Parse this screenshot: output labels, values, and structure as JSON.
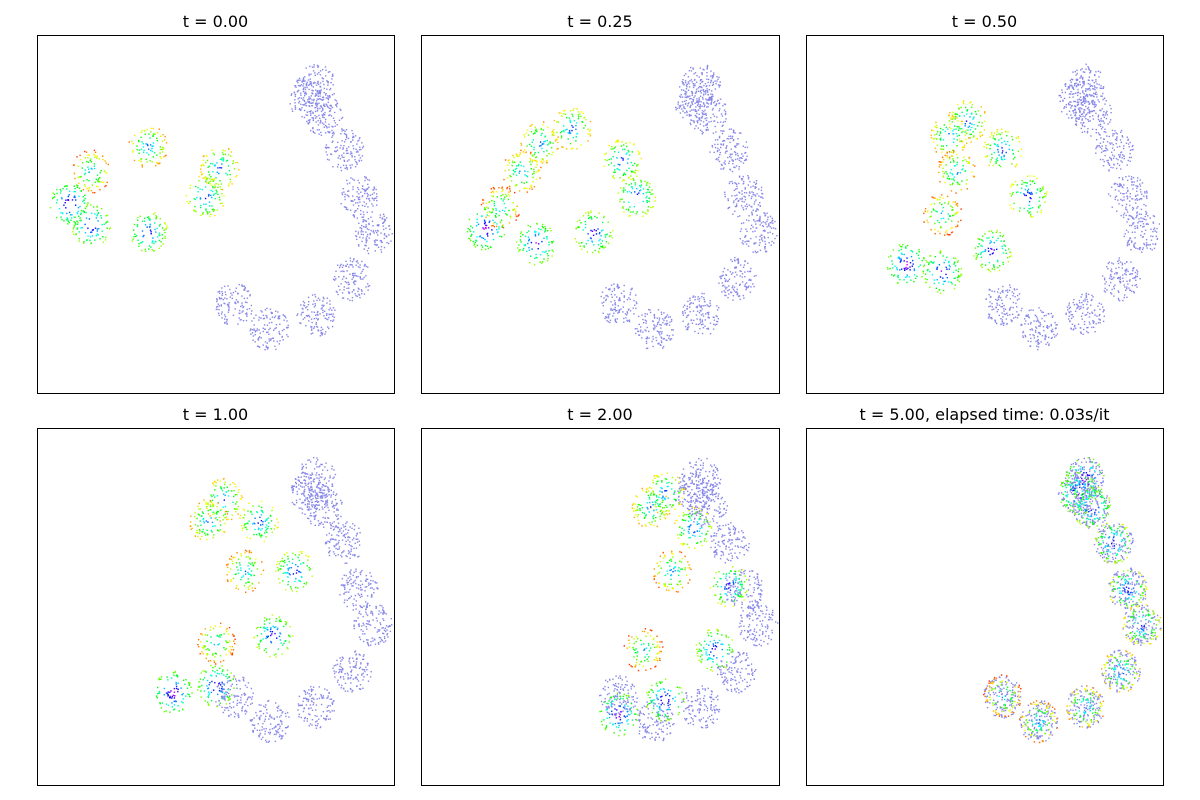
{
  "figure": {
    "panel_titles": [
      "t = 0.00",
      "t = 0.25",
      "t = 0.50",
      "t = 1.00",
      "t = 2.00",
      "t = 5.00, elapsed time: 0.03s/it"
    ]
  },
  "chart_data": [
    {
      "type": "scatter",
      "title": "t = 0.00",
      "xlabel": "",
      "ylabel": "",
      "xlim": [
        0,
        1
      ],
      "ylim": [
        0,
        1
      ],
      "grid": false,
      "ticks": "hidden",
      "target_color": "#8888e8",
      "source_colormap": "gist_rainbow",
      "series": [
        {
          "role": "target",
          "shape": "paisley",
          "points": [
            [
              0.78,
              0.86
            ],
            [
              0.76,
              0.82
            ],
            [
              0.8,
              0.78
            ],
            [
              0.86,
              0.68
            ],
            [
              0.9,
              0.55
            ],
            [
              0.94,
              0.45
            ],
            [
              0.88,
              0.32
            ],
            [
              0.78,
              0.22
            ],
            [
              0.65,
              0.18
            ],
            [
              0.55,
              0.25
            ]
          ]
        },
        {
          "role": "source",
          "shape": "ellipse",
          "center": [
            0.31,
            0.57
          ],
          "points": [
            [
              0.09,
              0.53
            ],
            [
              0.15,
              0.47
            ],
            [
              0.31,
              0.45
            ],
            [
              0.47,
              0.55
            ],
            [
              0.51,
              0.63
            ],
            [
              0.31,
              0.69
            ],
            [
              0.15,
              0.62
            ]
          ]
        }
      ]
    },
    {
      "type": "scatter",
      "title": "t = 0.25",
      "xlabel": "",
      "ylabel": "",
      "xlim": [
        0,
        1
      ],
      "ylim": [
        0,
        1
      ],
      "grid": false,
      "ticks": "hidden",
      "target_color": "#8888e8",
      "source_colormap": "gist_rainbow",
      "series": [
        {
          "role": "target",
          "shape": "paisley",
          "points": [
            [
              0.78,
              0.86
            ],
            [
              0.76,
              0.82
            ],
            [
              0.8,
              0.78
            ],
            [
              0.86,
              0.68
            ],
            [
              0.9,
              0.55
            ],
            [
              0.94,
              0.45
            ],
            [
              0.88,
              0.32
            ],
            [
              0.78,
              0.22
            ],
            [
              0.65,
              0.18
            ],
            [
              0.55,
              0.25
            ]
          ]
        },
        {
          "role": "source",
          "shape": "crescent",
          "points": [
            [
              0.18,
              0.46
            ],
            [
              0.32,
              0.42
            ],
            [
              0.48,
              0.45
            ],
            [
              0.6,
              0.55
            ],
            [
              0.56,
              0.65
            ],
            [
              0.42,
              0.74
            ],
            [
              0.33,
              0.7
            ],
            [
              0.28,
              0.62
            ],
            [
              0.22,
              0.52
            ]
          ]
        }
      ]
    },
    {
      "type": "scatter",
      "title": "t = 0.50",
      "xlabel": "",
      "ylabel": "",
      "xlim": [
        0,
        1
      ],
      "ylim": [
        0,
        1
      ],
      "grid": false,
      "ticks": "hidden",
      "target_color": "#8888e8",
      "source_colormap": "gist_rainbow",
      "series": [
        {
          "role": "target",
          "shape": "paisley",
          "points": [
            [
              0.78,
              0.86
            ],
            [
              0.76,
              0.82
            ],
            [
              0.8,
              0.78
            ],
            [
              0.86,
              0.68
            ],
            [
              0.9,
              0.55
            ],
            [
              0.94,
              0.45
            ],
            [
              0.88,
              0.32
            ],
            [
              0.78,
              0.22
            ],
            [
              0.65,
              0.18
            ],
            [
              0.55,
              0.25
            ]
          ]
        },
        {
          "role": "source",
          "shape": "crescent",
          "points": [
            [
              0.28,
              0.36
            ],
            [
              0.38,
              0.34
            ],
            [
              0.52,
              0.4
            ],
            [
              0.62,
              0.55
            ],
            [
              0.55,
              0.68
            ],
            [
              0.45,
              0.76
            ],
            [
              0.4,
              0.72
            ],
            [
              0.42,
              0.62
            ],
            [
              0.38,
              0.5
            ]
          ]
        }
      ]
    },
    {
      "type": "scatter",
      "title": "t = 1.00",
      "xlabel": "",
      "ylabel": "",
      "xlim": [
        0,
        1
      ],
      "ylim": [
        0,
        1
      ],
      "grid": false,
      "ticks": "hidden",
      "target_color": "#8888e8",
      "source_colormap": "gist_rainbow",
      "series": [
        {
          "role": "target",
          "shape": "paisley",
          "points": [
            [
              0.78,
              0.86
            ],
            [
              0.76,
              0.82
            ],
            [
              0.8,
              0.78
            ],
            [
              0.86,
              0.68
            ],
            [
              0.9,
              0.55
            ],
            [
              0.94,
              0.45
            ],
            [
              0.88,
              0.32
            ],
            [
              0.78,
              0.22
            ],
            [
              0.65,
              0.18
            ],
            [
              0.55,
              0.25
            ]
          ]
        },
        {
          "role": "source",
          "shape": "crescent",
          "points": [
            [
              0.38,
              0.26
            ],
            [
              0.5,
              0.28
            ],
            [
              0.66,
              0.42
            ],
            [
              0.72,
              0.6
            ],
            [
              0.62,
              0.74
            ],
            [
              0.52,
              0.8
            ],
            [
              0.48,
              0.74
            ],
            [
              0.58,
              0.6
            ],
            [
              0.5,
              0.4
            ]
          ]
        }
      ]
    },
    {
      "type": "scatter",
      "title": "t = 2.00",
      "xlabel": "",
      "ylabel": "",
      "xlim": [
        0,
        1
      ],
      "ylim": [
        0,
        1
      ],
      "grid": false,
      "ticks": "hidden",
      "target_color": "#8888e8",
      "source_colormap": "gist_rainbow",
      "series": [
        {
          "role": "target",
          "shape": "paisley",
          "points": [
            [
              0.78,
              0.86
            ],
            [
              0.76,
              0.82
            ],
            [
              0.8,
              0.78
            ],
            [
              0.86,
              0.68
            ],
            [
              0.9,
              0.55
            ],
            [
              0.94,
              0.45
            ],
            [
              0.88,
              0.32
            ],
            [
              0.78,
              0.22
            ],
            [
              0.65,
              0.18
            ],
            [
              0.55,
              0.25
            ]
          ]
        },
        {
          "role": "source",
          "shape": "crescent",
          "points": [
            [
              0.55,
              0.2
            ],
            [
              0.68,
              0.24
            ],
            [
              0.82,
              0.38
            ],
            [
              0.86,
              0.56
            ],
            [
              0.76,
              0.72
            ],
            [
              0.68,
              0.82
            ],
            [
              0.64,
              0.78
            ],
            [
              0.7,
              0.6
            ],
            [
              0.62,
              0.38
            ]
          ]
        }
      ]
    },
    {
      "type": "scatter",
      "title": "t = 5.00, elapsed time: 0.03s/it",
      "xlabel": "",
      "ylabel": "",
      "xlim": [
        0,
        1
      ],
      "ylim": [
        0,
        1
      ],
      "grid": false,
      "ticks": "hidden",
      "target_color": "#8888e8",
      "source_colormap": "gist_rainbow",
      "series": [
        {
          "role": "target",
          "shape": "paisley",
          "points": [
            [
              0.78,
              0.86
            ],
            [
              0.76,
              0.82
            ],
            [
              0.8,
              0.78
            ],
            [
              0.86,
              0.68
            ],
            [
              0.9,
              0.55
            ],
            [
              0.94,
              0.45
            ],
            [
              0.88,
              0.32
            ],
            [
              0.78,
              0.22
            ],
            [
              0.65,
              0.18
            ],
            [
              0.55,
              0.25
            ]
          ]
        },
        {
          "role": "source",
          "shape": "paisley",
          "points": [
            [
              0.78,
              0.86
            ],
            [
              0.76,
              0.82
            ],
            [
              0.8,
              0.78
            ],
            [
              0.86,
              0.68
            ],
            [
              0.9,
              0.55
            ],
            [
              0.94,
              0.45
            ],
            [
              0.88,
              0.32
            ],
            [
              0.78,
              0.22
            ],
            [
              0.65,
              0.18
            ],
            [
              0.55,
              0.25
            ]
          ]
        }
      ]
    }
  ]
}
